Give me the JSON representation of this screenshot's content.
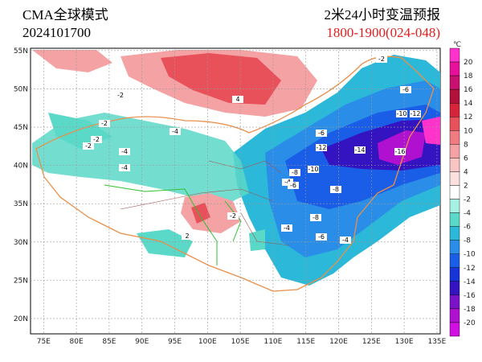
{
  "header": {
    "model": "CMA全球模式",
    "init": "2024101700",
    "title": "2米24小时变温预报",
    "period": "1800-1900(024-048)"
  },
  "map": {
    "lon_range": [
      73,
      135.5
    ],
    "lat_range": [
      18,
      55.3
    ],
    "lon_ticks": [
      {
        "value": 75,
        "label": "75E"
      },
      {
        "value": 80,
        "label": "80E"
      },
      {
        "value": 85,
        "label": "85E"
      },
      {
        "value": 90,
        "label": "90E"
      },
      {
        "value": 95,
        "label": "95E"
      },
      {
        "value": 100,
        "label": "100E"
      },
      {
        "value": 105,
        "label": "105E"
      },
      {
        "value": 110,
        "label": "110E"
      },
      {
        "value": 115,
        "label": "115E"
      },
      {
        "value": 120,
        "label": "120E"
      },
      {
        "value": 125,
        "label": "125E"
      },
      {
        "value": 130,
        "label": "130E"
      },
      {
        "value": 135,
        "label": "135E"
      }
    ],
    "lat_ticks": [
      {
        "value": 55,
        "label": "55N"
      },
      {
        "value": 50,
        "label": "50N"
      },
      {
        "value": 45,
        "label": "45N"
      },
      {
        "value": 40,
        "label": "40N"
      },
      {
        "value": 35,
        "label": "35N"
      },
      {
        "value": 30,
        "label": "30N"
      },
      {
        "value": 25,
        "label": "25N"
      },
      {
        "value": 20,
        "label": "20N"
      }
    ],
    "contour_labels": [
      -2,
      -2,
      -4,
      -2,
      -4,
      -4,
      -2,
      -6,
      -12,
      -14,
      -16,
      -10,
      -8,
      -8,
      -10,
      -6,
      -8,
      -4,
      -6,
      -4,
      -2,
      4,
      2,
      -4,
      -2,
      -12,
      -6
    ]
  },
  "colorbar": {
    "unit": "℃",
    "labels": [
      20,
      18,
      16,
      14,
      12,
      10,
      8,
      6,
      4,
      2,
      -2,
      -4,
      -6,
      -8,
      -10,
      -12,
      -14,
      -16,
      -18,
      -20
    ],
    "colors": [
      "#ff33cc",
      "#e8109a",
      "#c8106e",
      "#b2123a",
      "#d6243a",
      "#e8505a",
      "#f07c82",
      "#f4a2a4",
      "#f8c4c4",
      "#fbe0de",
      "#ffffff",
      "#a6f0e4",
      "#5ad8c8",
      "#2cb8d8",
      "#2a8ee8",
      "#1a5ee8",
      "#1634d8",
      "#3414c0",
      "#7a12c8",
      "#b010d0",
      "#d010e0"
    ]
  }
}
